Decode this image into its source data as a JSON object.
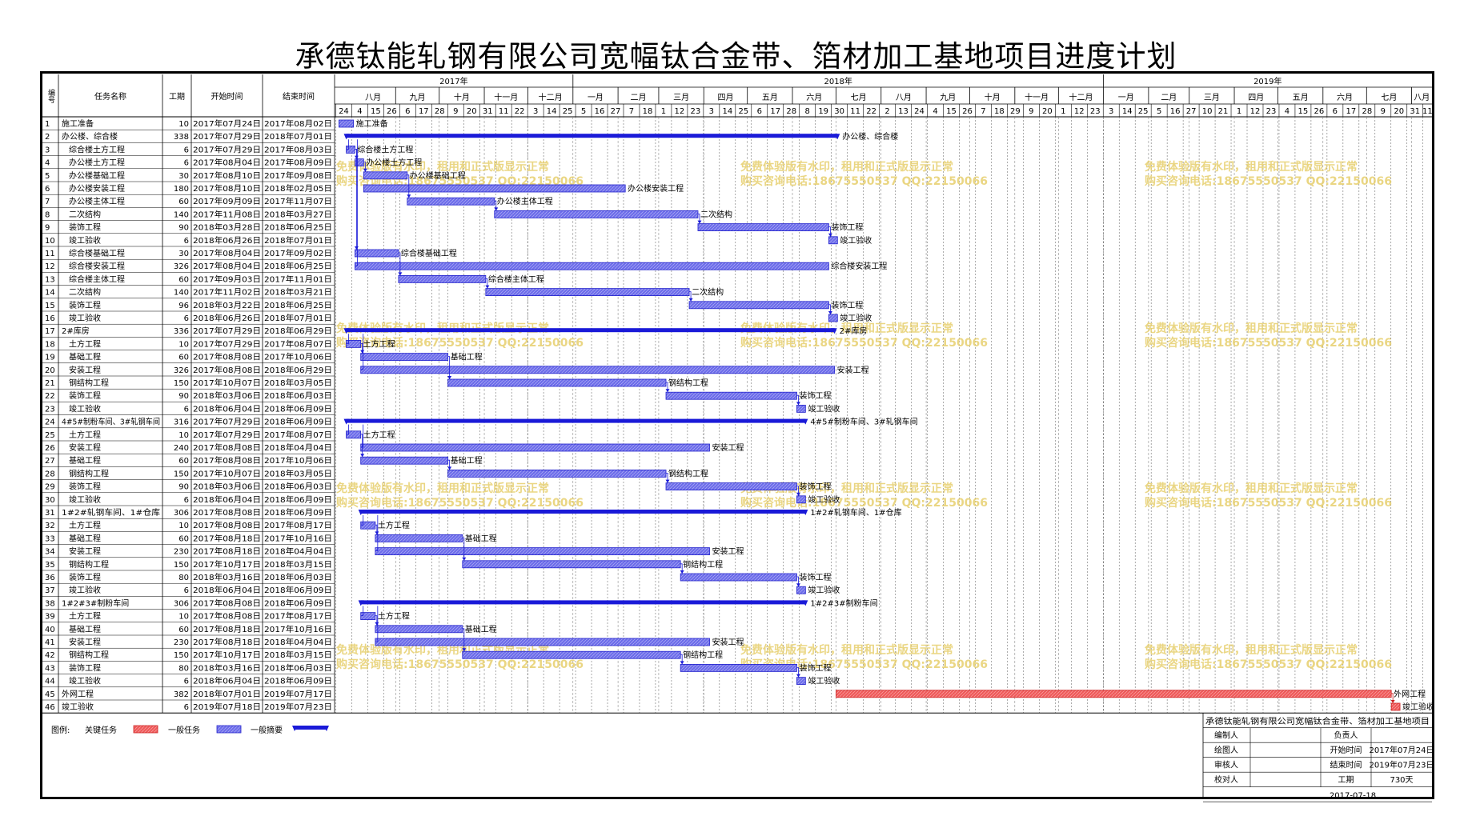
{
  "title": "承德钛能轧钢有限公司宽幅钛合金带、箔材加工基地项目进度计划",
  "headers": {
    "no": "编号",
    "name": "任务名称",
    "dur": "工期",
    "start": "开始时间",
    "end": "结束时间"
  },
  "years": [
    "2017年",
    "2018年",
    "2019年"
  ],
  "months": [
    "八月",
    "九月",
    "十月",
    "十一月",
    "十二月",
    "一月",
    "二月",
    "三月",
    "四月",
    "五月",
    "六月",
    "七月",
    "八月",
    "九月",
    "十月",
    "十一月",
    "十二月",
    "一月",
    "二月",
    "三月",
    "四月",
    "五月",
    "六月",
    "七月",
    "八月"
  ],
  "day_ticks": [
    "24",
    "4",
    "15",
    "26",
    "6",
    "17",
    "28",
    "9",
    "20",
    "31",
    "11",
    "22",
    "3",
    "14",
    "25",
    "5",
    "16",
    "27",
    "7",
    "18",
    "1",
    "12",
    "23",
    "3",
    "14",
    "25",
    "6",
    "17",
    "28",
    "8",
    "19",
    "30",
    "11",
    "22",
    "2",
    "13",
    "24",
    "4",
    "15",
    "26",
    "7",
    "18",
    "29",
    "9",
    "20",
    "1",
    "12",
    "23",
    "3",
    "14",
    "25",
    "5",
    "16",
    "27",
    "10",
    "21",
    "1",
    "12",
    "23",
    "4",
    "15",
    "26",
    "6",
    "17",
    "28",
    "9",
    "20",
    "31",
    "11"
  ],
  "chart_data": {
    "type": "gantt",
    "x_range": [
      "2017-07-21",
      "2019-08-15"
    ],
    "tasks": [
      {
        "id": "1",
        "name": "施工准备",
        "dur": "10",
        "start": "2017年07月24日",
        "end": "2017年08月02日",
        "s": "2017-07-24",
        "e": "2017-08-02",
        "level": 0,
        "type": "task",
        "label": "施工准备"
      },
      {
        "id": "2",
        "name": "办公楼、综合楼",
        "dur": "338",
        "start": "2017年07月29日",
        "end": "2018年07月01日",
        "s": "2017-07-29",
        "e": "2018-07-01",
        "level": 0,
        "type": "summary",
        "label": "办公楼、综合楼"
      },
      {
        "id": "3",
        "name": "综合楼土方工程",
        "dur": "6",
        "start": "2017年07月29日",
        "end": "2017年08月03日",
        "s": "2017-07-29",
        "e": "2017-08-03",
        "level": 1,
        "type": "task",
        "label": "综合楼土方工程"
      },
      {
        "id": "4",
        "name": "办公楼土方工程",
        "dur": "6",
        "start": "2017年08月04日",
        "end": "2017年08月09日",
        "s": "2017-08-04",
        "e": "2017-08-09",
        "level": 1,
        "type": "task",
        "label": "办公楼土方工程"
      },
      {
        "id": "5",
        "name": "办公楼基础工程",
        "dur": "30",
        "start": "2017年08月10日",
        "end": "2017年09月08日",
        "s": "2017-08-10",
        "e": "2017-09-08",
        "level": 1,
        "type": "task",
        "label": "办公楼基础工程"
      },
      {
        "id": "6",
        "name": "办公楼安装工程",
        "dur": "180",
        "start": "2017年08月10日",
        "end": "2018年02月05日",
        "s": "2017-08-10",
        "e": "2018-02-05",
        "level": 1,
        "type": "task",
        "label": "办公楼安装工程"
      },
      {
        "id": "7",
        "name": "办公楼主体工程",
        "dur": "60",
        "start": "2017年09月09日",
        "end": "2017年11月07日",
        "s": "2017-09-09",
        "e": "2017-11-07",
        "level": 1,
        "type": "task",
        "label": "办公楼主体工程"
      },
      {
        "id": "8",
        "name": "二次结构",
        "dur": "140",
        "start": "2017年11月08日",
        "end": "2018年03月27日",
        "s": "2017-11-08",
        "e": "2018-03-27",
        "level": 1,
        "type": "task",
        "label": "二次结构"
      },
      {
        "id": "9",
        "name": "装饰工程",
        "dur": "90",
        "start": "2018年03月28日",
        "end": "2018年06月25日",
        "s": "2018-03-28",
        "e": "2018-06-25",
        "level": 1,
        "type": "task",
        "label": "装饰工程"
      },
      {
        "id": "10",
        "name": "竣工验收",
        "dur": "6",
        "start": "2018年06月26日",
        "end": "2018年07月01日",
        "s": "2018-06-26",
        "e": "2018-07-01",
        "level": 1,
        "type": "task",
        "label": "竣工验收"
      },
      {
        "id": "11",
        "name": "综合楼基础工程",
        "dur": "30",
        "start": "2017年08月04日",
        "end": "2017年09月02日",
        "s": "2017-08-04",
        "e": "2017-09-02",
        "level": 1,
        "type": "task",
        "label": "综合楼基础工程"
      },
      {
        "id": "12",
        "name": "综合楼安装工程",
        "dur": "326",
        "start": "2017年08月04日",
        "end": "2018年06月25日",
        "s": "2017-08-04",
        "e": "2018-06-25",
        "level": 1,
        "type": "task",
        "label": "综合楼安装工程"
      },
      {
        "id": "13",
        "name": "综合楼主体工程",
        "dur": "60",
        "start": "2017年09月03日",
        "end": "2017年11月01日",
        "s": "2017-09-03",
        "e": "2017-11-01",
        "level": 1,
        "type": "task",
        "label": "综合楼主体工程"
      },
      {
        "id": "14",
        "name": "二次结构",
        "dur": "140",
        "start": "2017年11月02日",
        "end": "2018年03月21日",
        "s": "2017-11-02",
        "e": "2018-03-21",
        "level": 1,
        "type": "task",
        "label": "二次结构"
      },
      {
        "id": "15",
        "name": "装饰工程",
        "dur": "96",
        "start": "2018年03月22日",
        "end": "2018年06月25日",
        "s": "2018-03-22",
        "e": "2018-06-25",
        "level": 1,
        "type": "task",
        "label": "装饰工程"
      },
      {
        "id": "16",
        "name": "竣工验收",
        "dur": "6",
        "start": "2018年06月26日",
        "end": "2018年07月01日",
        "s": "2018-06-26",
        "e": "2018-07-01",
        "level": 1,
        "type": "task",
        "label": "竣工验收"
      },
      {
        "id": "17",
        "name": "2#库房",
        "dur": "336",
        "start": "2017年07月29日",
        "end": "2018年06月29日",
        "s": "2017-07-29",
        "e": "2018-06-29",
        "level": 0,
        "type": "summary",
        "label": "2#库房"
      },
      {
        "id": "18",
        "name": "土方工程",
        "dur": "10",
        "start": "2017年07月29日",
        "end": "2017年08月07日",
        "s": "2017-07-29",
        "e": "2017-08-07",
        "level": 1,
        "type": "task",
        "label": "土方工程"
      },
      {
        "id": "19",
        "name": "基础工程",
        "dur": "60",
        "start": "2017年08月08日",
        "end": "2017年10月06日",
        "s": "2017-08-08",
        "e": "2017-10-06",
        "level": 1,
        "type": "task",
        "label": "基础工程"
      },
      {
        "id": "20",
        "name": "安装工程",
        "dur": "326",
        "start": "2017年08月08日",
        "end": "2018年06月29日",
        "s": "2017-08-08",
        "e": "2018-06-29",
        "level": 1,
        "type": "task",
        "label": "安装工程"
      },
      {
        "id": "21",
        "name": "钢结构工程",
        "dur": "150",
        "start": "2017年10月07日",
        "end": "2018年03月05日",
        "s": "2017-10-07",
        "e": "2018-03-05",
        "level": 1,
        "type": "task",
        "label": "钢结构工程"
      },
      {
        "id": "22",
        "name": "装饰工程",
        "dur": "90",
        "start": "2018年03月06日",
        "end": "2018年06月03日",
        "s": "2018-03-06",
        "e": "2018-06-03",
        "level": 1,
        "type": "task",
        "label": "装饰工程"
      },
      {
        "id": "23",
        "name": "竣工验收",
        "dur": "6",
        "start": "2018年06月04日",
        "end": "2018年06月09日",
        "s": "2018-06-04",
        "e": "2018-06-09",
        "level": 1,
        "type": "task",
        "label": "竣工验收"
      },
      {
        "id": "24",
        "name": "4#5#制粉车间、3#轧钢车间",
        "dur": "316",
        "start": "2017年07月29日",
        "end": "2018年06月09日",
        "s": "2017-07-29",
        "e": "2018-06-09",
        "level": 0,
        "type": "summary",
        "label": "4#5#制粉车间、3#轧钢车间"
      },
      {
        "id": "25",
        "name": "土方工程",
        "dur": "10",
        "start": "2017年07月29日",
        "end": "2017年08月07日",
        "s": "2017-07-29",
        "e": "2017-08-07",
        "level": 1,
        "type": "task",
        "label": "土方工程"
      },
      {
        "id": "26",
        "name": "安装工程",
        "dur": "240",
        "start": "2017年08月08日",
        "end": "2018年04月04日",
        "s": "2017-08-08",
        "e": "2018-04-04",
        "level": 1,
        "type": "task",
        "label": "安装工程"
      },
      {
        "id": "27",
        "name": "基础工程",
        "dur": "60",
        "start": "2017年08月08日",
        "end": "2017年10月06日",
        "s": "2017-08-08",
        "e": "2017-10-06",
        "level": 1,
        "type": "task",
        "label": "基础工程"
      },
      {
        "id": "28",
        "name": "钢结构工程",
        "dur": "150",
        "start": "2017年10月07日",
        "end": "2018年03月05日",
        "s": "2017-10-07",
        "e": "2018-03-05",
        "level": 1,
        "type": "task",
        "label": "钢结构工程"
      },
      {
        "id": "29",
        "name": "装饰工程",
        "dur": "90",
        "start": "2018年03月06日",
        "end": "2018年06月03日",
        "s": "2018-03-06",
        "e": "2018-06-03",
        "level": 1,
        "type": "task",
        "label": "装饰工程"
      },
      {
        "id": "30",
        "name": "竣工验收",
        "dur": "6",
        "start": "2018年06月04日",
        "end": "2018年06月09日",
        "s": "2018-06-04",
        "e": "2018-06-09",
        "level": 1,
        "type": "task",
        "label": "竣工验收"
      },
      {
        "id": "31",
        "name": "1#2#轧钢车间、1#仓库",
        "dur": "306",
        "start": "2017年08月08日",
        "end": "2018年06月09日",
        "s": "2017-08-08",
        "e": "2018-06-09",
        "level": 0,
        "type": "summary",
        "label": "1#2#轧钢车间、1#仓库"
      },
      {
        "id": "32",
        "name": "土方工程",
        "dur": "10",
        "start": "2017年08月08日",
        "end": "2017年08月17日",
        "s": "2017-08-08",
        "e": "2017-08-17",
        "level": 1,
        "type": "task",
        "label": "土方工程"
      },
      {
        "id": "33",
        "name": "基础工程",
        "dur": "60",
        "start": "2017年08月18日",
        "end": "2017年10月16日",
        "s": "2017-08-18",
        "e": "2017-10-16",
        "level": 1,
        "type": "task",
        "label": "基础工程"
      },
      {
        "id": "34",
        "name": "安装工程",
        "dur": "230",
        "start": "2017年08月18日",
        "end": "2018年04月04日",
        "s": "2017-08-18",
        "e": "2018-04-04",
        "level": 1,
        "type": "task",
        "label": "安装工程"
      },
      {
        "id": "35",
        "name": "钢结构工程",
        "dur": "150",
        "start": "2017年10月17日",
        "end": "2018年03月15日",
        "s": "2017-10-17",
        "e": "2018-03-15",
        "level": 1,
        "type": "task",
        "label": "钢结构工程"
      },
      {
        "id": "36",
        "name": "装饰工程",
        "dur": "80",
        "start": "2018年03月16日",
        "end": "2018年06月03日",
        "s": "2018-03-16",
        "e": "2018-06-03",
        "level": 1,
        "type": "task",
        "label": "装饰工程"
      },
      {
        "id": "37",
        "name": "竣工验收",
        "dur": "6",
        "start": "2018年06月04日",
        "end": "2018年06月09日",
        "s": "2018-06-04",
        "e": "2018-06-09",
        "level": 1,
        "type": "task",
        "label": "竣工验收"
      },
      {
        "id": "38",
        "name": "1#2#3#制粉车间",
        "dur": "306",
        "start": "2017年08月08日",
        "end": "2018年06月09日",
        "s": "2017-08-08",
        "e": "2018-06-09",
        "level": 0,
        "type": "summary",
        "label": "1#2#3#制粉车间"
      },
      {
        "id": "39",
        "name": "土方工程",
        "dur": "10",
        "start": "2017年08月08日",
        "end": "2017年08月17日",
        "s": "2017-08-08",
        "e": "2017-08-17",
        "level": 1,
        "type": "task",
        "label": "土方工程"
      },
      {
        "id": "40",
        "name": "基础工程",
        "dur": "60",
        "start": "2017年08月18日",
        "end": "2017年10月16日",
        "s": "2017-08-18",
        "e": "2017-10-16",
        "level": 1,
        "type": "task",
        "label": "基础工程"
      },
      {
        "id": "41",
        "name": "安装工程",
        "dur": "230",
        "start": "2017年08月18日",
        "end": "2018年04月04日",
        "s": "2017-08-18",
        "e": "2018-04-04",
        "level": 1,
        "type": "task",
        "label": "安装工程"
      },
      {
        "id": "42",
        "name": "钢结构工程",
        "dur": "150",
        "start": "2017年10月17日",
        "end": "2018年03月15日",
        "s": "2017-10-17",
        "e": "2018-03-15",
        "level": 1,
        "type": "task",
        "label": "钢结构工程"
      },
      {
        "id": "43",
        "name": "装饰工程",
        "dur": "80",
        "start": "2018年03月16日",
        "end": "2018年06月03日",
        "s": "2018-03-16",
        "e": "2018-06-03",
        "level": 1,
        "type": "task",
        "label": "装饰工程"
      },
      {
        "id": "44",
        "name": "竣工验收",
        "dur": "6",
        "start": "2018年06月04日",
        "end": "2018年06月09日",
        "s": "2018-06-04",
        "e": "2018-06-09",
        "level": 1,
        "type": "task",
        "label": "竣工验收"
      },
      {
        "id": "45",
        "name": "外网工程",
        "dur": "382",
        "start": "2018年07月01日",
        "end": "2019年07月17日",
        "s": "2018-07-01",
        "e": "2019-07-17",
        "level": 0,
        "type": "critical",
        "label": "外网工程"
      },
      {
        "id": "46",
        "name": "竣工验收",
        "dur": "6",
        "start": "2019年07月18日",
        "end": "2019年07月23日",
        "s": "2019-07-18",
        "e": "2019-07-23",
        "level": 0,
        "type": "critical",
        "label": "竣工验收"
      }
    ]
  },
  "legend": {
    "label": "图例:",
    "critical": "关键任务",
    "normal": "一般任务",
    "summary": "一般摘要"
  },
  "colors": {
    "normal": "#6d6dea",
    "summary": "#1a1ad8",
    "critical": "#ef5a5a",
    "critical_text": "#e60000",
    "grid_dash": "#555555"
  },
  "watermark": {
    "line1": "免费体验版有水印，租用和正式版显示正常",
    "line2": "购买咨询电话:18675550537 QQ:22150066"
  },
  "info_box": {
    "project": "承德钛能轧钢有限公司宽幅钛合金带、箔材加工基地项目",
    "rows": [
      {
        "l1": "编制人",
        "v1": "",
        "l2": "负责人",
        "v2": ""
      },
      {
        "l1": "绘图人",
        "v1": "",
        "l2": "开始时间",
        "v2": "2017年07月24日"
      },
      {
        "l1": "审核人",
        "v1": "",
        "l2": "结束时间",
        "v2": "2019年07月23日"
      },
      {
        "l1": "校对人",
        "v1": "",
        "l2": "工期",
        "v2": "730天"
      }
    ],
    "date": "2017-07-18"
  }
}
